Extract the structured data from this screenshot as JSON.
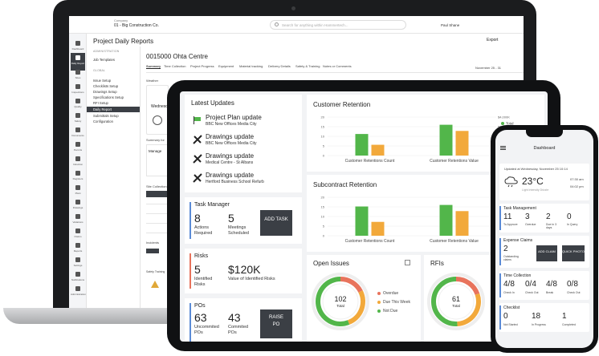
{
  "laptop": {
    "company_label": "Company",
    "company_name": "01 - Big Construction Co.",
    "search_placeholder": "Search for anything within Hammertech...",
    "user_name": "Paul Shane",
    "rail_items": [
      "Dashboard",
      "Daily Report",
      "Sites",
      "Inspections",
      "Quality",
      "Safety",
      "Documents",
      "Permits",
      "Induction",
      "Registers",
      "Plant",
      "Drawings",
      "Variations",
      "Claims",
      "Reports",
      "Settings",
      "Notifications",
      "Administration"
    ],
    "page_title": "Project Daily Reports",
    "export_label": "Export",
    "sidebar": {
      "head1": "ADMINISTRATION",
      "link1": "Job Templates",
      "head2": "GLOBAL",
      "links": [
        "Issue Setup",
        "Checklists Setup",
        "Drawings Setup",
        "Specifications Setup",
        "RFI Setup",
        "Daily Report",
        "Submittals Setup",
        "Configuration"
      ],
      "active_index": 5
    },
    "project_title": "0015000 Ohta Centre",
    "tabs": [
      "Summary",
      "Time Collection",
      "Project Progress",
      "Equipment",
      "Material tracking",
      "Delivery Details",
      "Safety & Training",
      "Notes or Comments"
    ],
    "date_nav": "November 25 - 31",
    "weather_label": "Weather",
    "weekday": "Wednesday",
    "summary_label": "Summary for",
    "manage_label": "Manage",
    "site_label": "Site Collection",
    "incidents_label": "Incidents",
    "safety_label": "Safety Training"
  },
  "tablet": {
    "latest_updates_title": "Latest Updates",
    "updates": [
      {
        "title": "Project Plan update",
        "sub": "BBC New Offices Media City",
        "icon": "flag-chart-icon"
      },
      {
        "title": "Drawings update",
        "sub": "BBC New Offices Media City",
        "icon": "drawing-tools-icon"
      },
      {
        "title": "Drawings update",
        "sub": "Medical Centre - St Albans",
        "icon": "drawing-tools-icon"
      },
      {
        "title": "Drawings update",
        "sub": "Hertford Business School Refurb",
        "icon": "drawing-tools-icon"
      }
    ],
    "task_manager": {
      "title": "Task Manager",
      "num1": "8",
      "lbl1a": "Actions",
      "lbl1b": "Required",
      "num2": "5",
      "lbl2a": "Meetings",
      "lbl2b": "Scheduled",
      "button": "ADD TASK"
    },
    "risks": {
      "title": "Risks",
      "num1": "5",
      "lbl1a": "Identified",
      "lbl1b": "Risks",
      "num2": "$120K",
      "lbl2": "Value of Identified Risks"
    },
    "pos": {
      "title": "POs",
      "num1": "63",
      "lbl1a": "Uncommited",
      "lbl1b": "POs",
      "num2": "43",
      "lbl2a": "Commited",
      "lbl2b": "POs",
      "button_line1": "RAISE",
      "button_line2": "PO"
    },
    "customer_retention": {
      "title": "Customer Retention"
    },
    "subcontract_retention": {
      "title": "Subcontract Retention"
    },
    "open_issues": {
      "title": "Open Issues",
      "center_num": "102",
      "center_lbl": "Total",
      "legend": [
        "Overdue",
        "Due This Week",
        "Not Due"
      ]
    },
    "rfis": {
      "title": "RFIs",
      "center_num": "61",
      "center_lbl": "Total"
    }
  },
  "chart_data": [
    {
      "type": "bar",
      "title": "Customer Retention",
      "categories": [
        "Customer Retentions Count",
        "Customer Retentions Value"
      ],
      "series": [
        {
          "name": "Total",
          "values": [
            14,
            20
          ]
        },
        {
          "name": "Due next month",
          "values": [
            7,
            16
          ]
        }
      ],
      "ylim": [
        0,
        25
      ],
      "y_ticks_left": [
        "20",
        "15",
        "10",
        "5",
        "0"
      ],
      "y_ticks_right": [
        "$4,000K",
        "$3,000K",
        "$2,000K",
        "$1,000K",
        "$0K"
      ],
      "colors": [
        "#52b64a",
        "#f2a93b"
      ],
      "legend_position": "right"
    },
    {
      "type": "bar",
      "title": "Subcontract Retention",
      "categories": [
        "Customer Retentions Count",
        "Customer Retentions Value"
      ],
      "series": [
        {
          "name": "Total",
          "values": [
            19,
            20
          ]
        },
        {
          "name": "Due next month",
          "values": [
            9,
            16
          ]
        }
      ],
      "ylim": [
        0,
        25
      ],
      "y_ticks_left": [
        "20",
        "15",
        "10",
        "5",
        "0"
      ],
      "y_ticks_right": [
        "$4,000K",
        "$3,000K",
        "$2,000K",
        "$1,000K",
        "$0K"
      ],
      "colors": [
        "#52b64a",
        "#f2a93b"
      ],
      "legend_position": "right"
    },
    {
      "type": "pie",
      "title": "Open Issues",
      "labels": [
        "Overdue",
        "Due This Week",
        "Not Due"
      ],
      "values": [
        18,
        27,
        57
      ],
      "colors": [
        "#e8735c",
        "#f2a93b",
        "#52b64a"
      ],
      "total": 102
    },
    {
      "type": "pie",
      "title": "RFIs",
      "labels": [
        "Overdue",
        "Due This Week",
        "Not Due"
      ],
      "values": [
        12,
        18,
        31
      ],
      "colors": [
        "#e8735c",
        "#f2a93b",
        "#52b64a"
      ],
      "total": 61
    }
  ],
  "phone": {
    "title": "Dashboard",
    "weather": {
      "date": "Updated at Wednesday, November 25 10:14",
      "temp": "23°C",
      "desc": "Light Intensity Drizzle",
      "sunrise": "07:30 am",
      "sunset": "04:02 pm"
    },
    "task_mgmt": {
      "title": "Task Management",
      "items": [
        {
          "num": "11",
          "lbl": "To Approve"
        },
        {
          "num": "3",
          "lbl": "Overdue"
        },
        {
          "num": "2",
          "lbl": "Due in 3 days"
        },
        {
          "num": "0",
          "lbl": "In Query"
        }
      ]
    },
    "expense": {
      "title": "Expense Claims",
      "num": "2",
      "lbl": "Outstanding claims",
      "btn1": "ADD CLAIM",
      "btn2": "QUICK PHOTO"
    },
    "time": {
      "title": "Time Collection",
      "items": [
        {
          "num": "4/8",
          "lbl": "Check In"
        },
        {
          "num": "0/4",
          "lbl": "Check Out"
        },
        {
          "num": "4/8",
          "lbl": "Break"
        },
        {
          "num": "0/8",
          "lbl": "Check Out"
        }
      ]
    },
    "checklist": {
      "title": "Checklist",
      "items": [
        {
          "num": "0",
          "lbl": "Not Started"
        },
        {
          "num": "18",
          "lbl": "In Progress"
        },
        {
          "num": "1",
          "lbl": "Completed"
        }
      ]
    }
  },
  "colors": {
    "green": "#52b64a",
    "orange": "#f2a93b",
    "red": "#e8735c",
    "blue": "#5b8bd6",
    "dark": "#3b3f45"
  }
}
